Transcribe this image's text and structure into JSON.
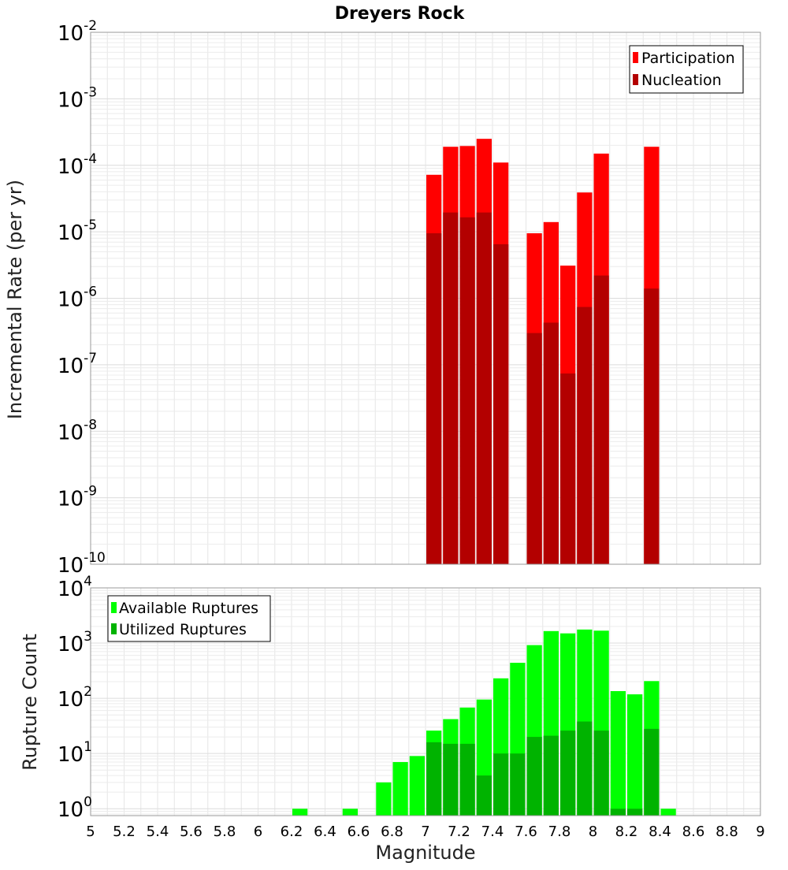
{
  "chart_data": [
    {
      "type": "bar",
      "title": "Dreyers Rock",
      "xlabel": "",
      "ylabel": "Incremental Rate (per yr)",
      "yscale": "log",
      "xlim": [
        5,
        9
      ],
      "ylim": [
        1e-10,
        0.01
      ],
      "grid": true,
      "legend_position": "top-right",
      "y_tick_labels": [
        {
          "exp": -10,
          "label": "10",
          "sup": "-10"
        },
        {
          "exp": -9,
          "label": "10",
          "sup": "-9"
        },
        {
          "exp": -8,
          "label": "10",
          "sup": "-8"
        },
        {
          "exp": -7,
          "label": "10",
          "sup": "-7"
        },
        {
          "exp": -6,
          "label": "10",
          "sup": "-6"
        },
        {
          "exp": -5,
          "label": "10",
          "sup": "-5"
        },
        {
          "exp": -4,
          "label": "10",
          "sup": "-4"
        },
        {
          "exp": -3,
          "label": "10",
          "sup": "-3"
        },
        {
          "exp": -2,
          "label": "10",
          "sup": "-2"
        }
      ],
      "series": [
        {
          "name": "Participation",
          "color": "#ff0000",
          "x": [
            7.05,
            7.15,
            7.25,
            7.35,
            7.45,
            7.65,
            7.75,
            7.85,
            7.95,
            8.05,
            8.35
          ],
          "values": [
            7.2e-05,
            0.00019,
            0.000195,
            0.00025,
            0.00011,
            9.5e-06,
            1.4e-05,
            3.1e-06,
            3.9e-05,
            0.00015,
            0.00019
          ]
        },
        {
          "name": "Nucleation",
          "color": "#b30000",
          "x": [
            7.05,
            7.15,
            7.25,
            7.35,
            7.45,
            7.65,
            7.75,
            7.85,
            7.95,
            8.05,
            8.35
          ],
          "values": [
            9.5e-06,
            1.95e-05,
            1.65e-05,
            1.95e-05,
            6.5e-06,
            3e-07,
            4.3e-07,
            7.4e-08,
            7.4e-07,
            2.2e-06,
            1.4e-06
          ]
        }
      ]
    },
    {
      "type": "bar",
      "title": "",
      "xlabel": "Magnitude",
      "ylabel": "Rupture Count",
      "yscale": "log",
      "xlim": [
        5,
        9
      ],
      "ylim": [
        0.75,
        10000
      ],
      "grid": true,
      "legend_position": "top-left",
      "y_tick_labels": [
        {
          "exp": 0,
          "label": "10",
          "sup": "0"
        },
        {
          "exp": 1,
          "label": "10",
          "sup": "1"
        },
        {
          "exp": 2,
          "label": "10",
          "sup": "2"
        },
        {
          "exp": 3,
          "label": "10",
          "sup": "3"
        },
        {
          "exp": 4,
          "label": "10",
          "sup": "4"
        }
      ],
      "x_tick_labels": [
        "5",
        "5.2",
        "5.4",
        "5.6",
        "5.8",
        "6",
        "6.2",
        "6.4",
        "6.6",
        "6.8",
        "7",
        "7.2",
        "7.4",
        "7.6",
        "7.8",
        "8",
        "8.2",
        "8.4",
        "8.6",
        "8.8",
        "9"
      ],
      "x_ticks": [
        5,
        5.2,
        5.4,
        5.6,
        5.8,
        6,
        6.2,
        6.4,
        6.6,
        6.8,
        7,
        7.2,
        7.4,
        7.6,
        7.8,
        8,
        8.2,
        8.4,
        8.6,
        8.8,
        9
      ],
      "series": [
        {
          "name": "Available Ruptures",
          "color": "#00ff00",
          "x": [
            6.25,
            6.55,
            6.75,
            6.85,
            6.95,
            7.05,
            7.15,
            7.25,
            7.35,
            7.45,
            7.55,
            7.65,
            7.75,
            7.85,
            7.95,
            8.05,
            8.15,
            8.25,
            8.35,
            8.45
          ],
          "values": [
            1,
            1,
            3,
            7,
            9,
            26,
            42,
            68,
            95,
            230,
            440,
            920,
            1650,
            1500,
            1760,
            1680,
            135,
            118,
            205,
            1
          ]
        },
        {
          "name": "Utilized Ruptures",
          "color": "#00b300",
          "x": [
            7.05,
            7.15,
            7.25,
            7.35,
            7.45,
            7.55,
            7.65,
            7.75,
            7.85,
            7.95,
            8.05,
            8.15,
            8.25,
            8.35
          ],
          "values": [
            16,
            15,
            15,
            4,
            10,
            10,
            20,
            21,
            26,
            38,
            26,
            1,
            1,
            28
          ]
        }
      ]
    }
  ]
}
